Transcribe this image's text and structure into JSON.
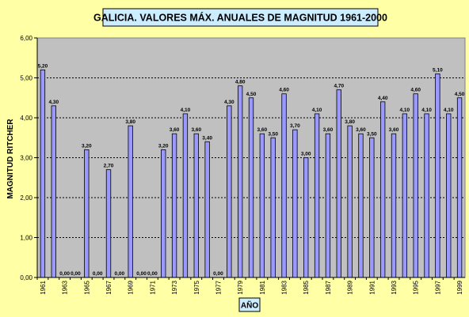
{
  "chart_data": {
    "type": "bar",
    "title": "GALICIA. VALORES MÁX. ANUALES DE MAGNITUD 1961-2000",
    "xlabel": "AÑO",
    "ylabel": "MAGNITUD RITCHER",
    "ylim": [
      0,
      6
    ],
    "yticks": [
      "0,00",
      "1,00",
      "2,00",
      "3,00",
      "4,00",
      "5,00",
      "6,00"
    ],
    "grid": true,
    "bar_color": "#9999ff",
    "plot_color": "#c0c0c0",
    "background_color": "#ffffa6",
    "categories": [
      "1961",
      "1962",
      "1963",
      "1964",
      "1965",
      "1966",
      "1967",
      "1968",
      "1969",
      "1970",
      "1971",
      "1972",
      "1973",
      "1974",
      "1975",
      "1976",
      "1977",
      "1978",
      "1979",
      "1980",
      "1981",
      "1982",
      "1983",
      "1984",
      "1985",
      "1986",
      "1987",
      "1988",
      "1989",
      "1990",
      "1991",
      "1992",
      "1993",
      "1994",
      "1995",
      "1996",
      "1997",
      "1998",
      "1999"
    ],
    "xtick_labels": [
      "1961",
      "",
      "1963",
      "",
      "1965",
      "",
      "1967",
      "",
      "1969",
      "",
      "1971",
      "",
      "1973",
      "",
      "1975",
      "",
      "1977",
      "",
      "1979",
      "",
      "1981",
      "",
      "1983",
      "",
      "1985",
      "",
      "1987",
      "",
      "1989",
      "",
      "1991",
      "",
      "1993",
      "",
      "1995",
      "",
      "1997",
      "",
      "1999"
    ],
    "values": [
      5.2,
      4.3,
      0,
      0,
      3.2,
      0,
      2.7,
      0,
      3.8,
      0,
      0,
      3.2,
      3.6,
      4.1,
      3.6,
      3.4,
      0,
      4.3,
      4.8,
      4.5,
      3.6,
      3.5,
      4.6,
      3.7,
      3.0,
      4.1,
      3.6,
      4.7,
      3.8,
      3.6,
      3.5,
      4.4,
      3.6,
      4.1,
      4.6,
      4.1,
      5.1,
      4.1,
      4.5
    ],
    "data_labels": [
      "5,20",
      "4,30",
      "0,00",
      "0,00",
      "3,20",
      "0,00",
      "2,70",
      "0,00",
      "3,80",
      "0,00",
      "0,00",
      "3,20",
      "3,60",
      "4,10",
      "3,60",
      "3,40",
      "0,00",
      "4,30",
      "4,80",
      "4,50",
      "3,60",
      "3,50",
      "4,60",
      "3,70",
      "3,00",
      "4,10",
      "3,60",
      "4,70",
      "3,80",
      "3,60",
      "3,50",
      "4,40",
      "3,60",
      "4,10",
      "4,60",
      "4,10",
      "5,10",
      "4,10",
      "4,50"
    ]
  }
}
